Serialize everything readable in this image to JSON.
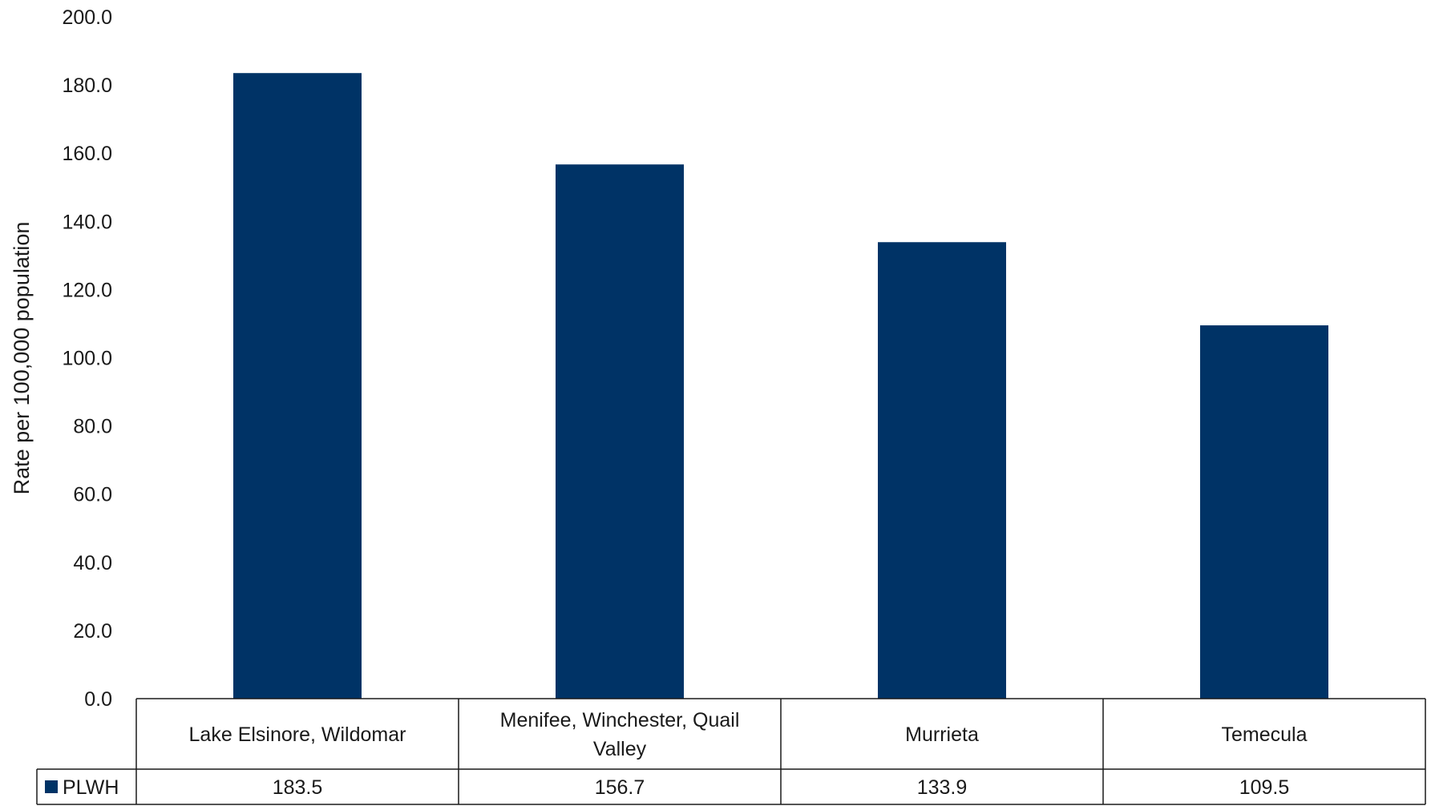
{
  "chart_data": {
    "type": "bar",
    "categories": [
      "Lake Elsinore, Wildomar",
      "Menifee, Winchester, Quail Valley",
      "Murrieta",
      "Temecula"
    ],
    "series": [
      {
        "name": "PLWH",
        "values": [
          183.5,
          156.7,
          133.9,
          109.5
        ],
        "color": "#003366"
      }
    ],
    "ylabel": "Rate per 100,000 population",
    "ylim": [
      0,
      200
    ],
    "yticks": [
      "0.0",
      "20.0",
      "40.0",
      "60.0",
      "80.0",
      "100.0",
      "120.0",
      "140.0",
      "160.0",
      "180.0",
      "200.0"
    ],
    "value_labels": [
      "183.5",
      "156.7",
      "133.9",
      "109.5"
    ],
    "grid": false,
    "legend": "data-table"
  }
}
